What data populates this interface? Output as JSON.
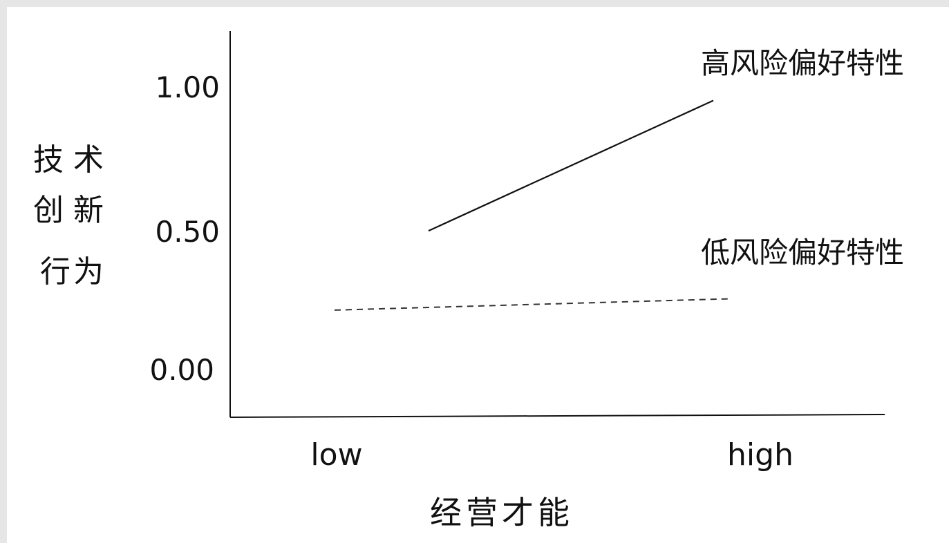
{
  "chart_data": {
    "type": "line",
    "categories": [
      "low",
      "high"
    ],
    "xlabel": "经营才能",
    "ylabel": "技术创新行为",
    "yticks": [
      "1.00",
      "0.50",
      "0.00"
    ],
    "ylim": [
      -0.15,
      1.2
    ],
    "grid": false,
    "legend": "inline-right",
    "series": [
      {
        "name": "高风险偏好特性",
        "values": [
          0.49,
          0.95
        ],
        "style": "solid",
        "color": "#111111"
      },
      {
        "name": "低风险偏好特性",
        "values": [
          0.21,
          0.25
        ],
        "style": "dashed",
        "color": "#333333"
      }
    ]
  }
}
